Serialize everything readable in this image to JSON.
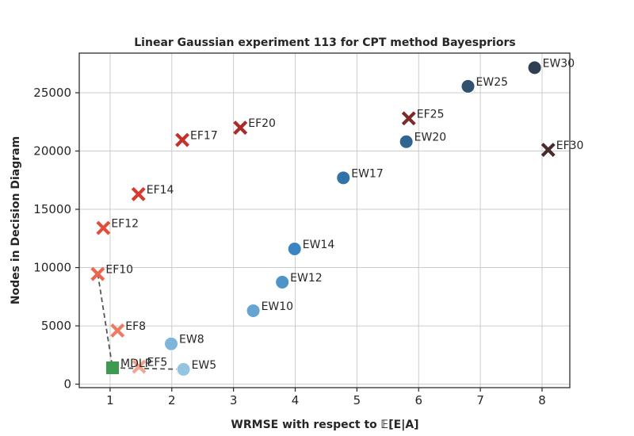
{
  "chart_data": {
    "type": "scatter",
    "title": "Linear Gaussian experiment 113 for CPT method Bayespriors",
    "xlabel": "WRMSE with respect to 𝔼[E|A]",
    "ylabel": "Nodes in Decision Diagram",
    "xlim": [
      0.5,
      8.45
    ],
    "ylim": [
      -300,
      28400
    ],
    "xticks": [
      1,
      2,
      3,
      4,
      5,
      6,
      7,
      8
    ],
    "yticks": [
      0,
      5000,
      10000,
      15000,
      20000,
      25000
    ],
    "grid": true,
    "legend": "none",
    "series": [
      {
        "marker": "circle",
        "points": [
          {
            "label": "EW5",
            "x": 2.19,
            "y": 1270,
            "color": "#94c4df"
          },
          {
            "label": "EW8",
            "x": 1.99,
            "y": 3460,
            "color": "#7fb5d8"
          },
          {
            "label": "EW10",
            "x": 3.32,
            "y": 6300,
            "color": "#66a5d1"
          },
          {
            "label": "EW12",
            "x": 3.79,
            "y": 8750,
            "color": "#4f94c8"
          },
          {
            "label": "EW14",
            "x": 3.99,
            "y": 11600,
            "color": "#3b84c2"
          },
          {
            "label": "EW17",
            "x": 4.78,
            "y": 17700,
            "color": "#3173a8"
          },
          {
            "label": "EW20",
            "x": 5.8,
            "y": 20800,
            "color": "#2f6590"
          },
          {
            "label": "EW25",
            "x": 6.8,
            "y": 25550,
            "color": "#30526f"
          },
          {
            "label": "EW30",
            "x": 7.88,
            "y": 27150,
            "color": "#2f3e50"
          }
        ]
      },
      {
        "marker": "x",
        "points": [
          {
            "label": "EF5",
            "x": 1.47,
            "y": 1500,
            "color": "#f3a48c"
          },
          {
            "label": "EF8",
            "x": 1.12,
            "y": 4600,
            "color": "#ef7a61"
          },
          {
            "label": "EF10",
            "x": 0.8,
            "y": 9450,
            "color": "#eb6650"
          },
          {
            "label": "EF12",
            "x": 0.89,
            "y": 13400,
            "color": "#e24e3c"
          },
          {
            "label": "EF14",
            "x": 1.46,
            "y": 16300,
            "color": "#d83a2e"
          },
          {
            "label": "EF17",
            "x": 2.17,
            "y": 20950,
            "color": "#c5302a"
          },
          {
            "label": "EF20",
            "x": 3.11,
            "y": 22000,
            "color": "#a92a27"
          },
          {
            "label": "EF25",
            "x": 5.84,
            "y": 22800,
            "color": "#7b2b28"
          },
          {
            "label": "EF30",
            "x": 8.1,
            "y": 20100,
            "color": "#4a2b2b"
          }
        ]
      },
      {
        "marker": "square",
        "points": [
          {
            "label": "MDLP",
            "x": 1.04,
            "y": 1400,
            "color": "#3d9a50"
          }
        ]
      }
    ],
    "frontier": {
      "style": "dashed",
      "color": "#555555",
      "points": [
        {
          "x": 0.8,
          "y": 9450
        },
        {
          "x": 1.04,
          "y": 1400
        },
        {
          "x": 1.47,
          "y": 1350
        },
        {
          "x": 2.19,
          "y": 1270
        }
      ]
    }
  }
}
